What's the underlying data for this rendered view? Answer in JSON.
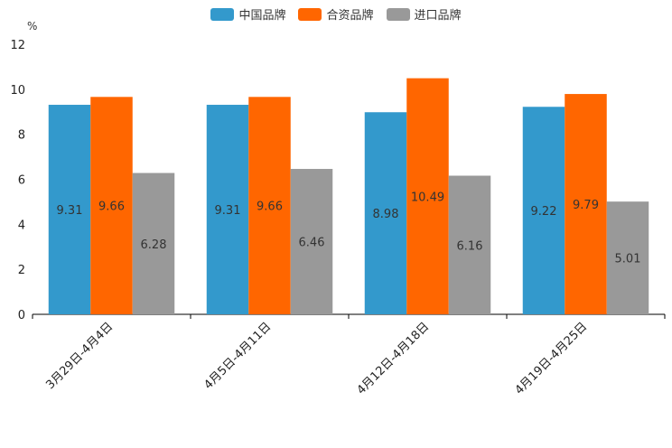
{
  "chart_data": {
    "type": "bar",
    "unit": "%",
    "categories": [
      "3月29日-4月4日",
      "4月5日-4月11日",
      "4月12日-4月18日",
      "4月19日-4月25日"
    ],
    "series": [
      {
        "name": "中国品牌",
        "color": "#3399cc",
        "values": [
          9.31,
          9.31,
          8.98,
          9.22
        ],
        "labels": [
          "9.31",
          "9.31",
          "8.98",
          "9.22"
        ]
      },
      {
        "name": "合资品牌",
        "color": "#ff6600",
        "values": [
          9.66,
          9.66,
          10.49,
          9.79
        ],
        "labels": [
          "9.66",
          "9.66",
          "10.49",
          "9.79"
        ]
      },
      {
        "name": "进口品牌",
        "color": "#999999",
        "values": [
          6.28,
          6.46,
          6.16,
          5.01
        ],
        "labels": [
          "6.28",
          "6.46",
          "6.16",
          "5.01"
        ]
      }
    ],
    "yticks": [
      "0",
      "2",
      "4",
      "6",
      "8",
      "10",
      "12"
    ],
    "ylim": [
      0,
      12
    ],
    "legend": "top-center"
  }
}
